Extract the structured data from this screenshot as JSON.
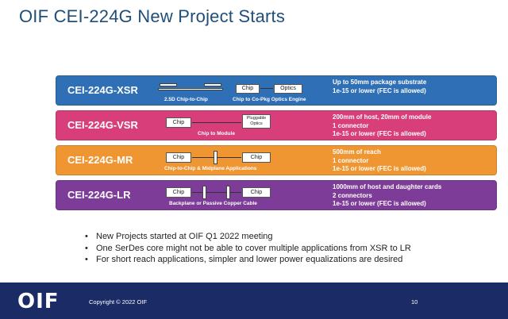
{
  "title": "OIF CEI-224G New Project Starts",
  "colors": {
    "xsr": "#2f6fb5",
    "vsr": "#d83f7a",
    "mr": "#ef9633",
    "lr": "#7d3c98",
    "footer": "#1a2b66",
    "title": "#1f4e79"
  },
  "bands": [
    {
      "name": "CEI-224G-XSR",
      "caption_left": "2.5D Chip-to-Chip",
      "caption_right": "Chip to Co-Pkg Optics Engine",
      "box_chip": "Chip",
      "box_optics": "Optics",
      "desc": [
        "Up to 50mm package substrate",
        "1e-15 or lower (FEC is allowed)"
      ]
    },
    {
      "name": "CEI-224G-VSR",
      "caption": "Chip to Module",
      "box_chip": "Chip",
      "box_optics": "Pluggable Optics",
      "desc": [
        "200mm of host, 20mm of module",
        "1 connector",
        "1e-15 or lower (FEC is allowed)"
      ]
    },
    {
      "name": "CEI-224G-MR",
      "caption": "Chip-to-Chip & Midplane Applications",
      "box_left": "Chip",
      "box_right": "Chip",
      "desc": [
        "500mm of reach",
        "1 connector",
        "1e-15 or lower (FEC is allowed)"
      ]
    },
    {
      "name": "CEI-224G-LR",
      "caption": "Backplane or Passive Copper Cable",
      "box_left": "Chip",
      "box_right": "Chip",
      "desc": [
        "1000mm of host and daughter cards",
        "2 connectors",
        "1e-15 or lower (FEC is allowed)"
      ]
    }
  ],
  "bullets": [
    "New Projects started at OIF Q1 2022 meeting",
    "One SerDes core might not be able to cover multiple applications from XSR to LR",
    "For short reach applications, simpler and lower power equalizations are desired"
  ],
  "footer": {
    "logo": "OIF",
    "copyright": "Copyright © 2022 OIF",
    "page": "10"
  }
}
